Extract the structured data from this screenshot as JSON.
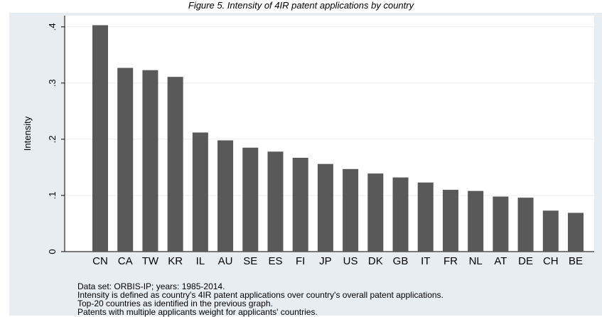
{
  "page": {
    "title": "Figure 5. Intensity of 4IR patent applications by country"
  },
  "chart_data": {
    "type": "bar",
    "categories": [
      "CN",
      "CA",
      "TW",
      "KR",
      "IL",
      "AU",
      "SE",
      "ES",
      "FI",
      "JP",
      "US",
      "DK",
      "GB",
      "IT",
      "FR",
      "NL",
      "AT",
      "DE",
      "CH",
      "BE"
    ],
    "values": [
      0.403,
      0.327,
      0.323,
      0.311,
      0.212,
      0.198,
      0.185,
      0.178,
      0.167,
      0.156,
      0.147,
      0.139,
      0.132,
      0.123,
      0.11,
      0.108,
      0.098,
      0.096,
      0.073,
      0.069
    ],
    "ylabel": "Intensity",
    "xlabel": "",
    "ylim": [
      0,
      0.42
    ],
    "yticks": [
      0,
      0.1,
      0.2,
      0.3,
      0.4
    ],
    "ytick_labels": [
      "0",
      ".1",
      ".2",
      ".3",
      ".4"
    ],
    "grid": true,
    "bar_color": "#595959",
    "plot_background": "#ffffff",
    "outer_background": "#e8edf2",
    "notes": [
      "Data set: ORBIS-IP; years: 1985-2014.",
      "Intensity is defined as country's 4IR patent applications over country's overall patent applications.",
      "Top-20 countries as identified in the previous graph.",
      "Patents with multiple applicants weight for applicants' countries."
    ]
  }
}
